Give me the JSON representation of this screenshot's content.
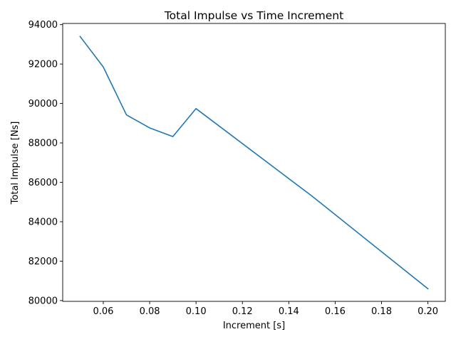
{
  "chart_data": {
    "type": "line",
    "title": "Total Impulse vs Time Increment",
    "xlabel": "Increment [s]",
    "ylabel": "Total Impulse [Ns]",
    "xlim": [
      0.0425,
      0.2075
    ],
    "ylim": [
      79960,
      94060
    ],
    "grid": false,
    "xticks": [
      0.06,
      0.08,
      0.1,
      0.12,
      0.14,
      0.16,
      0.18,
      0.2
    ],
    "xtick_labels": [
      "0.06",
      "0.08",
      "0.10",
      "0.12",
      "0.14",
      "0.16",
      "0.18",
      "0.20"
    ],
    "yticks": [
      80000,
      82000,
      84000,
      86000,
      88000,
      90000,
      92000,
      94000
    ],
    "ytick_labels": [
      "80000",
      "82000",
      "84000",
      "86000",
      "88000",
      "90000",
      "92000",
      "94000"
    ],
    "series": [
      {
        "name": "Total Impulse",
        "color": "#1f77b4",
        "x": [
          0.05,
          0.06,
          0.07,
          0.08,
          0.09,
          0.1,
          0.15,
          0.2
        ],
        "y": [
          93400,
          91850,
          89420,
          88760,
          88320,
          89740,
          85300,
          80600
        ]
      }
    ]
  }
}
